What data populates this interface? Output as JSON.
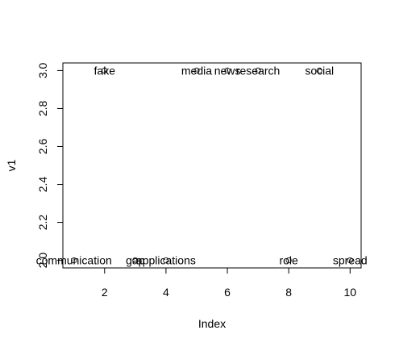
{
  "chart_data": {
    "type": "scatter",
    "xlabel": "Index",
    "ylabel": "v1",
    "xlim": [
      0.64,
      10.36
    ],
    "ylim": [
      1.96,
      3.04
    ],
    "x_ticks": [
      2,
      4,
      6,
      8,
      10
    ],
    "y_ticks": [
      2.0,
      2.2,
      2.4,
      2.6,
      2.8,
      3.0
    ],
    "points": [
      {
        "x": 1,
        "y": 2,
        "label": "communication"
      },
      {
        "x": 2,
        "y": 3,
        "label": "fake"
      },
      {
        "x": 3,
        "y": 2,
        "label": "gap"
      },
      {
        "x": 4,
        "y": 2,
        "label": "applications"
      },
      {
        "x": 5,
        "y": 3,
        "label": "media"
      },
      {
        "x": 6,
        "y": 3,
        "label": "news"
      },
      {
        "x": 7,
        "y": 3,
        "label": "research"
      },
      {
        "x": 8,
        "y": 2,
        "label": "role"
      },
      {
        "x": 9,
        "y": 3,
        "label": "social"
      },
      {
        "x": 10,
        "y": 2,
        "label": "spread"
      }
    ]
  }
}
